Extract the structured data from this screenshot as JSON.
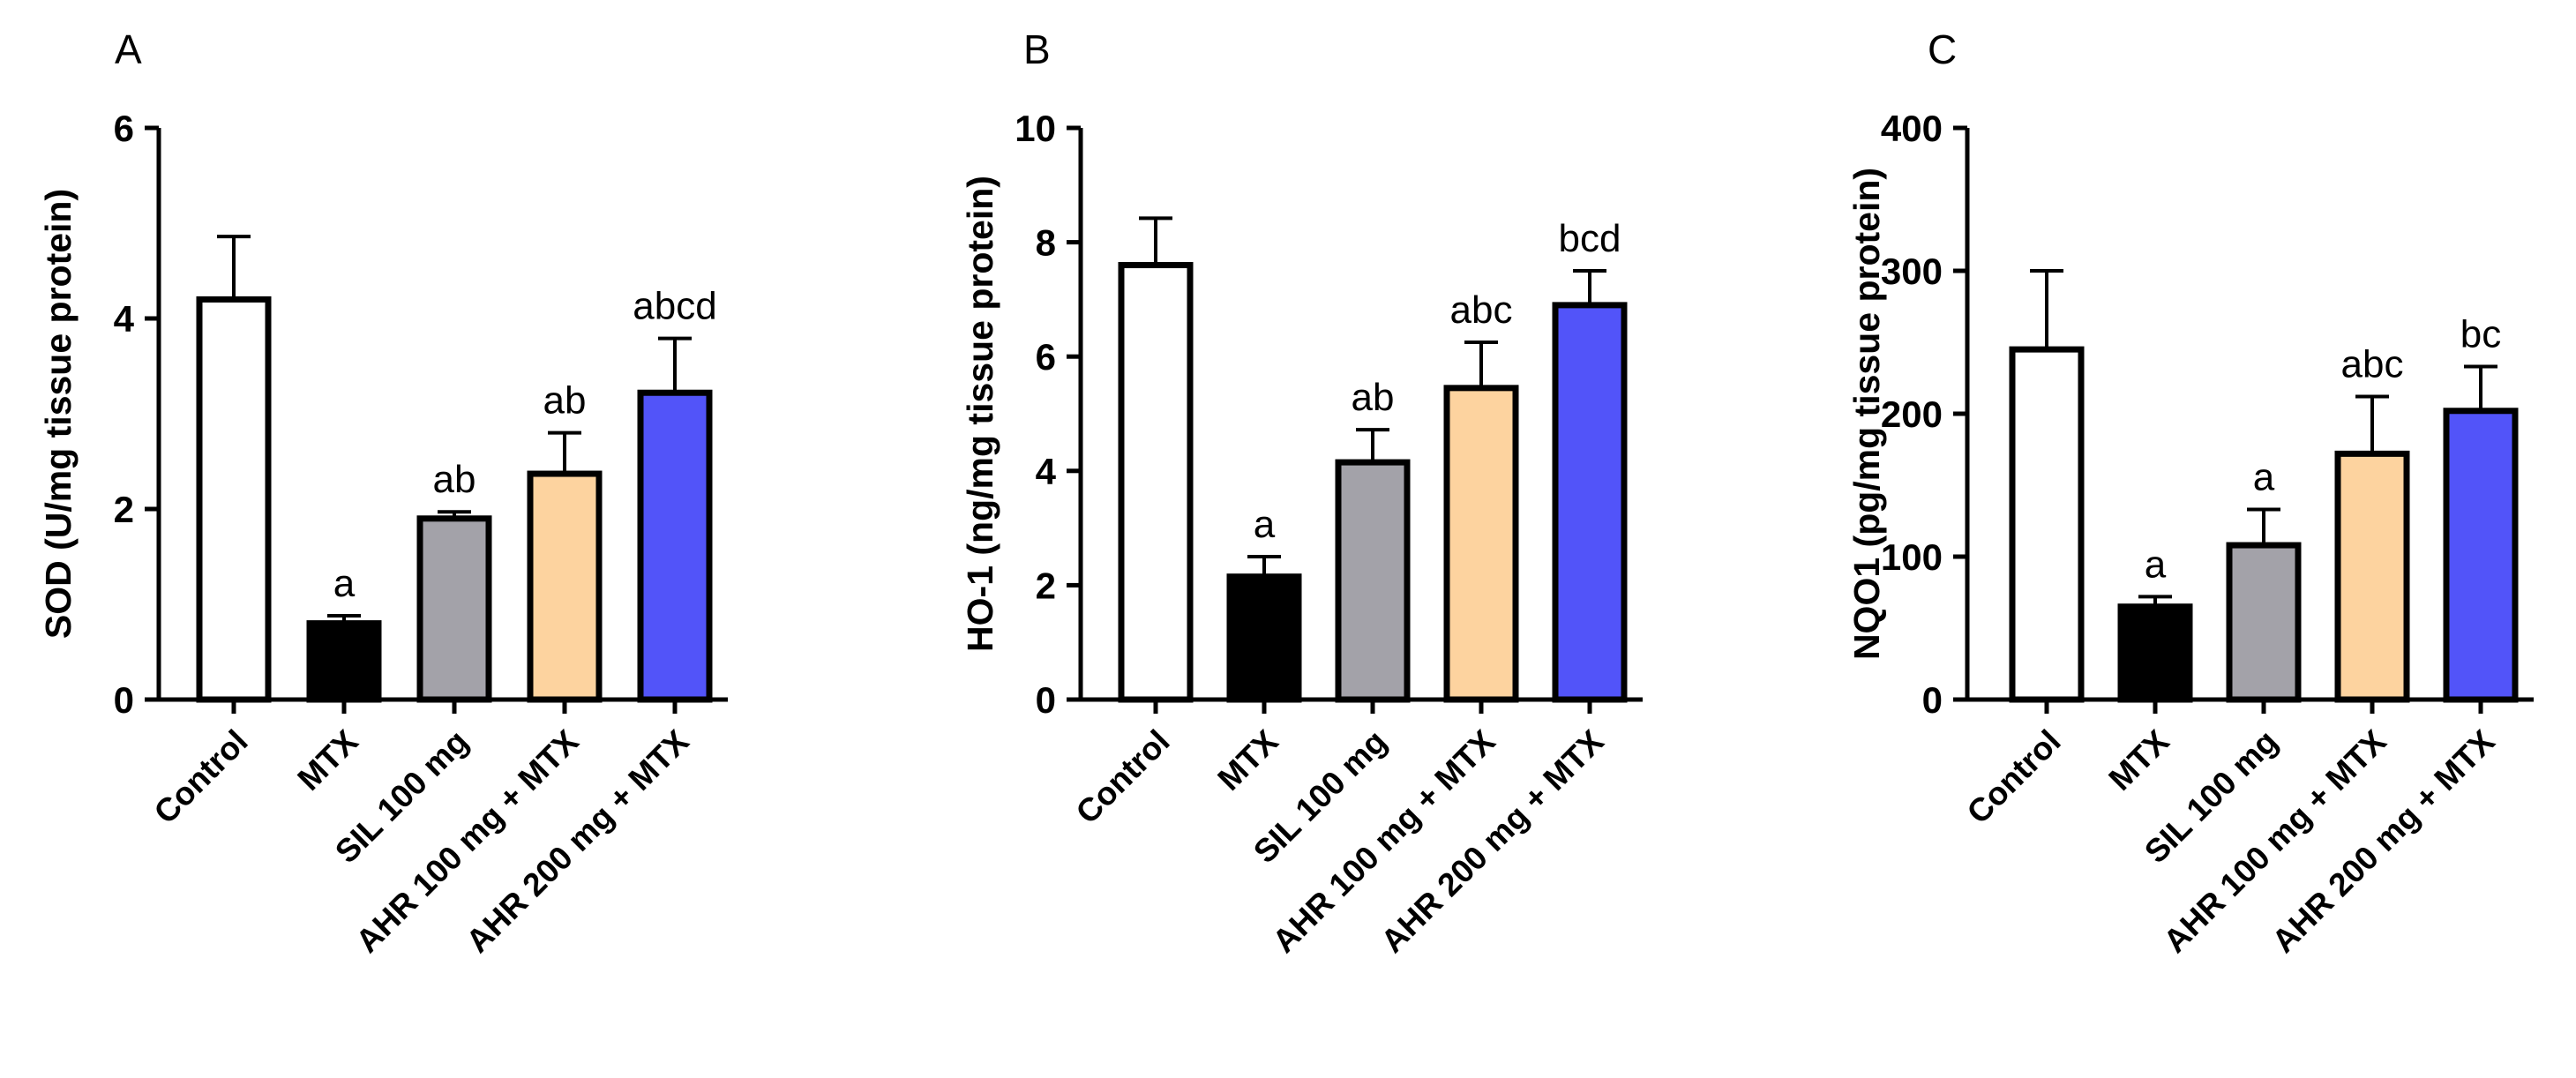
{
  "chart_data": [
    {
      "type": "bar",
      "panel": "A",
      "title": "",
      "xlabel": "",
      "ylabel": "SOD (U/mg tissue protein)",
      "ylim": [
        0,
        6
      ],
      "yticks": [
        0,
        2,
        4,
        6
      ],
      "categories": [
        "Control",
        "MTX",
        "SIL 100 mg",
        "AHR 100 mg + MTX",
        "AHR 200 mg + MTX"
      ],
      "values": [
        4.2,
        0.8,
        1.9,
        2.37,
        3.22
      ],
      "errors": [
        0.66,
        0.08,
        0.07,
        0.43,
        0.57
      ],
      "labels": [
        "",
        "a",
        "ab",
        "ab",
        "abcd"
      ],
      "colors": [
        "#ffffff",
        "#000000",
        "#a3a2a9",
        "#fdd39f",
        "#5254f9"
      ]
    },
    {
      "type": "bar",
      "panel": "B",
      "title": "",
      "xlabel": "",
      "ylabel": "HO-1 (ng/mg tissue protein)",
      "ylim": [
        0,
        10
      ],
      "yticks": [
        0,
        2,
        4,
        6,
        8,
        10
      ],
      "categories": [
        "Control",
        "MTX",
        "SIL 100 mg",
        "AHR 100 mg + MTX",
        "AHR 200 mg + MTX"
      ],
      "values": [
        7.6,
        2.15,
        4.15,
        5.45,
        6.9
      ],
      "errors": [
        0.82,
        0.35,
        0.57,
        0.8,
        0.6
      ],
      "labels": [
        "",
        "a",
        "ab",
        "abc",
        "bcd"
      ],
      "colors": [
        "#ffffff",
        "#000000",
        "#a3a2a9",
        "#fdd39f",
        "#5254f9"
      ]
    },
    {
      "type": "bar",
      "panel": "C",
      "title": "",
      "xlabel": "",
      "ylabel": "NQO1 (pg/mg tissue protein)",
      "ylim": [
        0,
        400
      ],
      "yticks": [
        0,
        100,
        200,
        300,
        400
      ],
      "categories": [
        "Control",
        "MTX",
        "SIL 100 mg",
        "AHR 100 mg + MTX",
        "AHR 200 mg + MTX"
      ],
      "values": [
        245,
        65,
        108,
        172,
        202
      ],
      "errors": [
        55,
        7,
        25,
        40,
        31
      ],
      "labels": [
        "",
        "a",
        "a",
        "abc",
        "bc"
      ],
      "colors": [
        "#ffffff",
        "#000000",
        "#a3a2a9",
        "#fdd39f",
        "#5254f9"
      ]
    }
  ]
}
